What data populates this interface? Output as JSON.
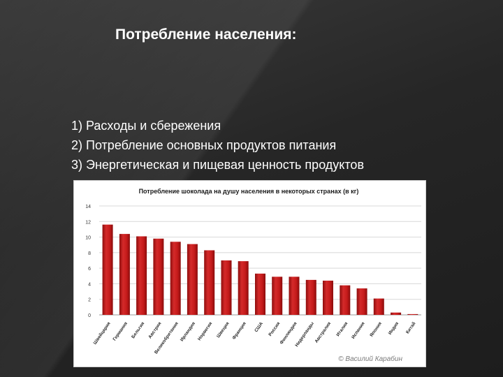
{
  "slide": {
    "title": "Потребление населения:",
    "bullets": [
      "1) Расходы и сбережения",
      "2) Потребление основных продуктов питания",
      "3) Энергетическая и пищевая ценность продуктов"
    ]
  },
  "chart_data": {
    "type": "bar",
    "title": "Потребление шоколада на душу населения в некоторых странах (в кг)",
    "xlabel": "",
    "ylabel": "",
    "ylim": [
      0,
      14
    ],
    "yticks": [
      0,
      2,
      4,
      6,
      8,
      10,
      12,
      14
    ],
    "grid": true,
    "bar_color": "#c41a1a",
    "categories": [
      "Швейцария",
      "Германия",
      "Бельгия",
      "Австрия",
      "Великобритания",
      "Ирландия",
      "Норвегия",
      "Швеция",
      "Франция",
      "США",
      "Россия",
      "Финляндия",
      "Нидерланды",
      "Австралия",
      "Италия",
      "Испания",
      "Япония",
      "Индия",
      "Китай"
    ],
    "values": [
      11.6,
      10.4,
      10.1,
      9.8,
      9.4,
      9.1,
      8.3,
      7.0,
      6.9,
      5.3,
      4.9,
      4.9,
      4.5,
      4.4,
      3.8,
      3.4,
      2.1,
      0.3,
      0.1
    ],
    "watermark": "© Василий Карабин"
  }
}
